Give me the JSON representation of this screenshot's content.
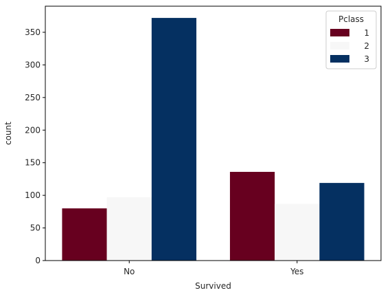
{
  "chart_data": {
    "type": "bar",
    "xlabel": "Survived",
    "ylabel": "count",
    "categories": [
      "No",
      "Yes"
    ],
    "ylim": [
      0,
      390
    ],
    "yticks": [
      0,
      50,
      100,
      150,
      200,
      250,
      300,
      350
    ],
    "legend": {
      "title": "Pclass",
      "placement": "top-right"
    },
    "grid": false,
    "series": [
      {
        "name": "1",
        "color": "#67001f",
        "values": [
          80,
          136
        ]
      },
      {
        "name": "2",
        "color": "#f7f7f7",
        "values": [
          97,
          87
        ]
      },
      {
        "name": "3",
        "color": "#053061",
        "values": [
          372,
          119
        ]
      }
    ]
  }
}
